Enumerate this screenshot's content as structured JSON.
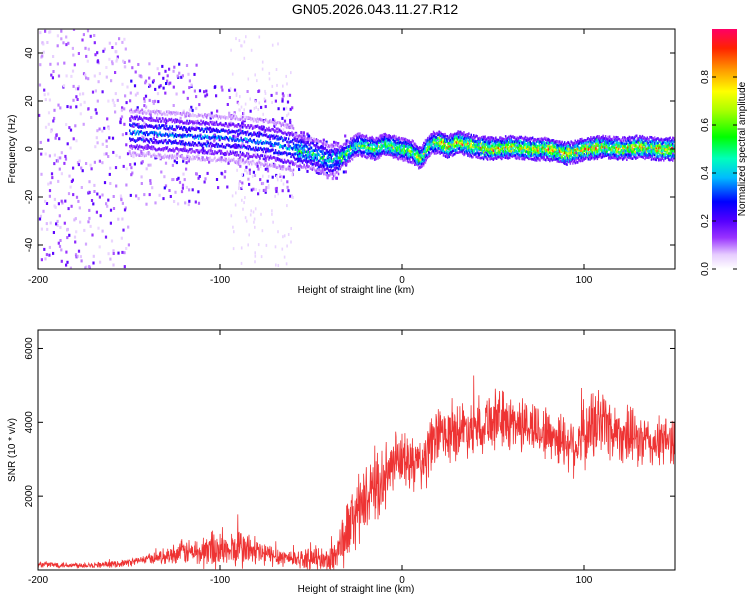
{
  "title": "GN05.2026.043.11.27.R12",
  "chart_data": [
    {
      "type": "heatmap",
      "title": "GN05.2026.043.11.27.R12",
      "xlabel": "Height of straight line (km)",
      "ylabel": "Frequency (Hz)",
      "xlim": [
        -200,
        150
      ],
      "ylim": [
        -50,
        50
      ],
      "xticks": [
        -200,
        -100,
        0,
        100
      ],
      "xtick_labels": [
        "-200",
        "-100",
        "0",
        "100"
      ],
      "yticks": [
        -40,
        -20,
        0,
        20,
        40
      ],
      "ytick_labels": [
        "-40",
        "-20",
        "0",
        "20",
        "40"
      ],
      "colorbar": {
        "label": "Normalized spectral amplitude",
        "range": [
          0,
          1
        ],
        "ticks": [
          0,
          0.2,
          0.4,
          0.6,
          0.8
        ],
        "tick_labels": [
          "0.0",
          "0.2",
          "0.4",
          "0.6",
          "0.8"
        ]
      },
      "peak_frequency_trace": {
        "x": [
          -150,
          -130,
          -110,
          -90,
          -70,
          -60,
          -50,
          -45,
          -40,
          -35,
          -30,
          -25,
          -20,
          -15,
          -10,
          -5,
          0,
          5,
          10,
          15,
          20,
          25,
          30,
          35,
          40,
          50,
          60,
          70,
          80,
          85,
          90,
          100,
          110,
          120,
          130,
          140,
          150
        ],
        "y": [
          7,
          6,
          5,
          4,
          2,
          0,
          -2,
          -3,
          -5,
          -4,
          -1,
          2,
          1,
          0,
          2,
          1,
          0,
          -1,
          -4,
          2,
          3,
          1,
          3,
          2,
          1,
          0,
          1,
          0,
          0,
          -1,
          -2,
          0,
          1,
          0,
          1,
          0,
          0
        ]
      },
      "notes": "Signal concentrated near 0 Hz for heights above about -40 km; broadband scatter below about -60 km"
    },
    {
      "type": "line",
      "xlabel": "Height of straight line (km)",
      "ylabel": "SNR (10 * v/v)",
      "xlim": [
        -200,
        150
      ],
      "ylim": [
        0,
        6500
      ],
      "xticks": [
        -200,
        -100,
        0,
        100
      ],
      "xtick_labels": [
        "-200",
        "-100",
        "0",
        "100"
      ],
      "yticks": [
        2000,
        4000,
        6000
      ],
      "ytick_labels": [
        "2000",
        "4000",
        "6000"
      ],
      "series": [
        {
          "name": "SNR",
          "color": "#ee3333",
          "x": [
            -200,
            -180,
            -160,
            -150,
            -140,
            -130,
            -120,
            -115,
            -110,
            -105,
            -100,
            -95,
            -90,
            -85,
            -80,
            -75,
            -70,
            -65,
            -60,
            -55,
            -50,
            -45,
            -42,
            -38,
            -35,
            -32,
            -30,
            -25,
            -20,
            -15,
            -10,
            -5,
            0,
            5,
            10,
            15,
            20,
            25,
            30,
            40,
            50,
            60,
            70,
            80,
            90,
            95,
            100,
            105,
            110,
            115,
            120,
            130,
            140,
            150
          ],
          "mean": [
            150,
            130,
            150,
            200,
            300,
            380,
            500,
            480,
            450,
            600,
            550,
            500,
            600,
            550,
            480,
            420,
            380,
            350,
            320,
            300,
            280,
            300,
            250,
            300,
            600,
            800,
            1100,
            1500,
            1900,
            2200,
            2400,
            2800,
            3000,
            2900,
            2800,
            3200,
            3700,
            3600,
            3800,
            3900,
            4100,
            4000,
            3900,
            3700,
            3500,
            3400,
            3600,
            3900,
            4100,
            3800,
            3700,
            3500,
            3400,
            3600
          ],
          "amp": [
            100,
            100,
            100,
            120,
            150,
            250,
            400,
            450,
            500,
            700,
            600,
            500,
            700,
            600,
            500,
            400,
            350,
            300,
            280,
            300,
            350,
            400,
            350,
            600,
            800,
            900,
            1000,
            1100,
            1000,
            1000,
            1000,
            1000,
            900,
            900,
            1000,
            1000,
            900,
            900,
            900,
            900,
            1000,
            900,
            900,
            900,
            900,
            1000,
            1100,
            1200,
            1300,
            1000,
            900,
            900,
            800,
            800
          ]
        }
      ]
    }
  ]
}
